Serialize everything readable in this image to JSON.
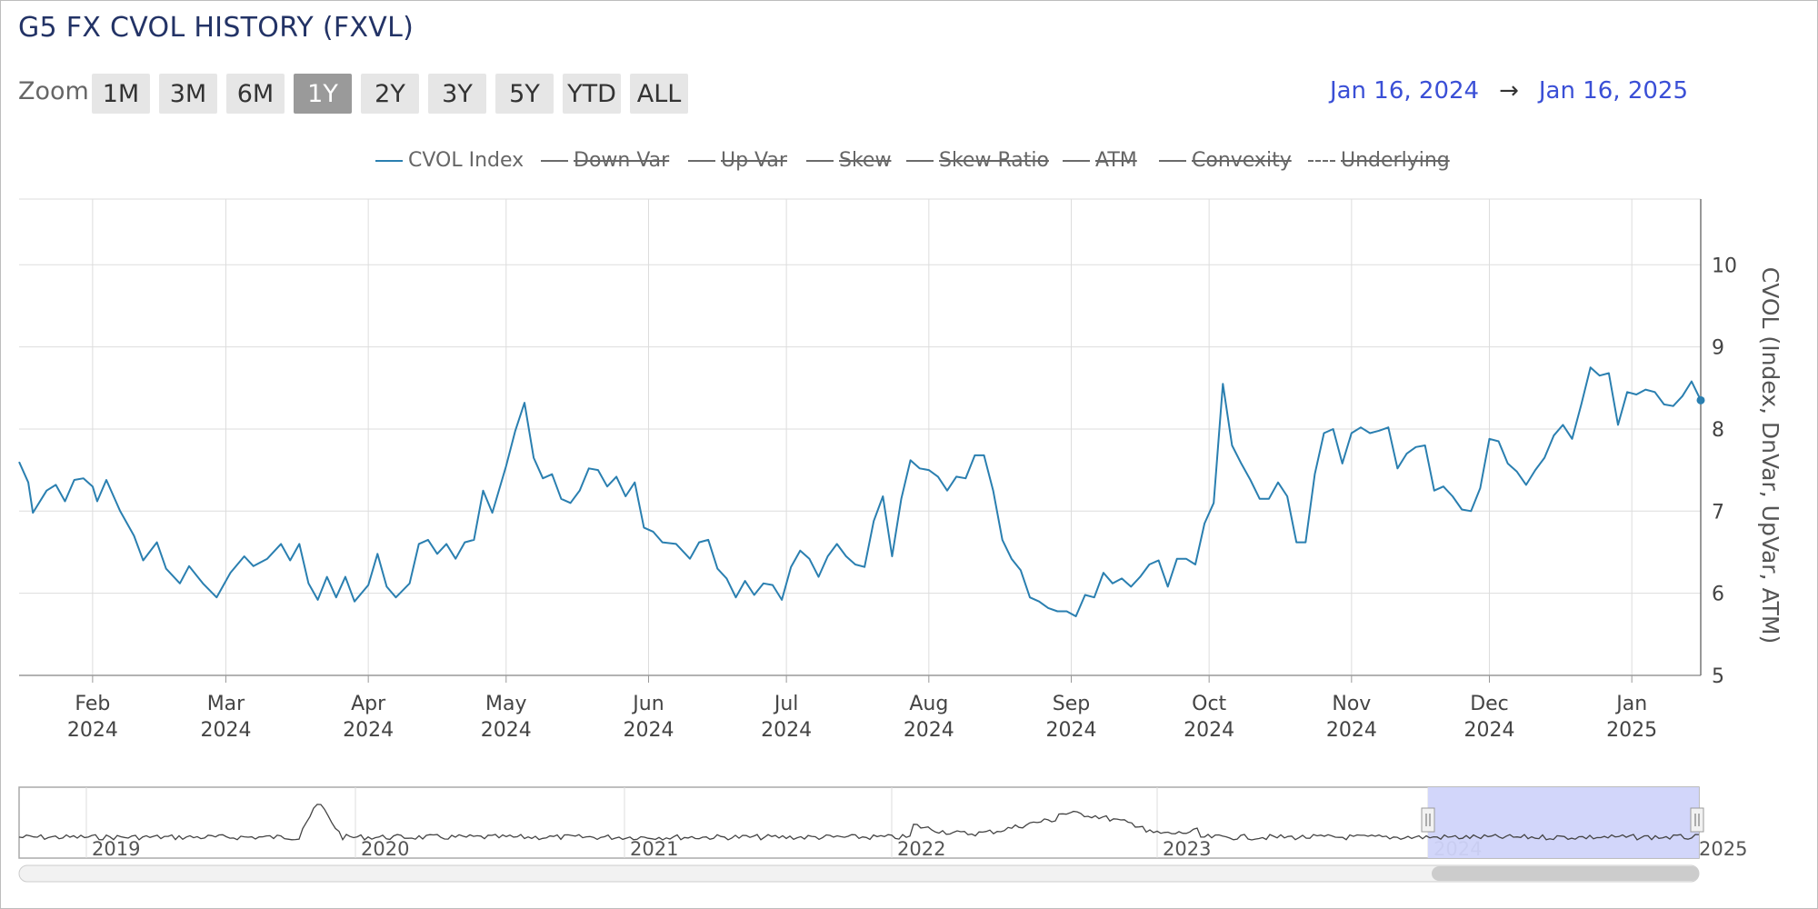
{
  "title": "G5 FX CVOL HISTORY (FXVL)",
  "zoom": {
    "label": "Zoom",
    "buttons": [
      "1M",
      "3M",
      "6M",
      "1Y",
      "2Y",
      "3Y",
      "5Y",
      "YTD",
      "ALL"
    ],
    "active": "1Y"
  },
  "range": {
    "from": "Jan 16, 2024",
    "arrow": "→",
    "to": "Jan 16, 2025"
  },
  "legend": [
    {
      "label": "CVOL Index",
      "visible": true
    },
    {
      "label": "Down Var",
      "visible": false
    },
    {
      "label": "Up Var",
      "visible": false
    },
    {
      "label": "Skew",
      "visible": false
    },
    {
      "label": "Skew Ratio",
      "visible": false
    },
    {
      "label": "ATM",
      "visible": false
    },
    {
      "label": "Convexity",
      "visible": false
    },
    {
      "label": "Underlying",
      "visible": false,
      "dashed": true
    }
  ],
  "colors": {
    "series": "#2a7fb0",
    "navigator_selection": "#d0d4fa",
    "grid": "#dddddd"
  },
  "chart_data": {
    "type": "line",
    "title": "G5 FX CVOL HISTORY (FXVL)",
    "ylabel": "CVOL (Index, DnVar, UpVar, ATM)",
    "ylim": [
      5,
      10.8
    ],
    "yticks": [
      5,
      6,
      7,
      8,
      9,
      10
    ],
    "xlim": [
      "2024-01-16",
      "2025-01-16"
    ],
    "x_ticks": [
      {
        "date": "2024-02-01",
        "month": "Feb",
        "year": "2024"
      },
      {
        "date": "2024-03-01",
        "month": "Mar",
        "year": "2024"
      },
      {
        "date": "2024-04-01",
        "month": "Apr",
        "year": "2024"
      },
      {
        "date": "2024-05-01",
        "month": "May",
        "year": "2024"
      },
      {
        "date": "2024-06-01",
        "month": "Jun",
        "year": "2024"
      },
      {
        "date": "2024-07-01",
        "month": "Jul",
        "year": "2024"
      },
      {
        "date": "2024-08-01",
        "month": "Aug",
        "year": "2024"
      },
      {
        "date": "2024-09-01",
        "month": "Sep",
        "year": "2024"
      },
      {
        "date": "2024-10-01",
        "month": "Oct",
        "year": "2024"
      },
      {
        "date": "2024-11-01",
        "month": "Nov",
        "year": "2024"
      },
      {
        "date": "2024-12-01",
        "month": "Dec",
        "year": "2024"
      },
      {
        "date": "2025-01-01",
        "month": "Jan",
        "year": "2025"
      }
    ],
    "grid": true,
    "legend_position": "top-center",
    "series": [
      {
        "name": "CVOL Index",
        "points": [
          [
            "2024-01-16",
            7.6
          ],
          [
            "2024-01-18",
            7.35
          ],
          [
            "2024-01-19",
            6.98
          ],
          [
            "2024-01-22",
            7.25
          ],
          [
            "2024-01-24",
            7.32
          ],
          [
            "2024-01-26",
            7.12
          ],
          [
            "2024-01-28",
            7.38
          ],
          [
            "2024-01-30",
            7.4
          ],
          [
            "2024-02-01",
            7.3
          ],
          [
            "2024-02-02",
            7.12
          ],
          [
            "2024-02-04",
            7.38
          ],
          [
            "2024-02-07",
            7.0
          ],
          [
            "2024-02-10",
            6.7
          ],
          [
            "2024-02-12",
            6.4
          ],
          [
            "2024-02-15",
            6.62
          ],
          [
            "2024-02-17",
            6.3
          ],
          [
            "2024-02-20",
            6.12
          ],
          [
            "2024-02-22",
            6.33
          ],
          [
            "2024-02-25",
            6.12
          ],
          [
            "2024-02-28",
            5.95
          ],
          [
            "2024-03-02",
            6.25
          ],
          [
            "2024-03-05",
            6.45
          ],
          [
            "2024-03-07",
            6.33
          ],
          [
            "2024-03-10",
            6.42
          ],
          [
            "2024-03-13",
            6.6
          ],
          [
            "2024-03-15",
            6.4
          ],
          [
            "2024-03-17",
            6.6
          ],
          [
            "2024-03-19",
            6.12
          ],
          [
            "2024-03-21",
            5.92
          ],
          [
            "2024-03-23",
            6.2
          ],
          [
            "2024-03-25",
            5.95
          ],
          [
            "2024-03-27",
            6.2
          ],
          [
            "2024-03-29",
            5.9
          ],
          [
            "2024-04-01",
            6.1
          ],
          [
            "2024-04-03",
            6.48
          ],
          [
            "2024-04-05",
            6.08
          ],
          [
            "2024-04-07",
            5.95
          ],
          [
            "2024-04-10",
            6.12
          ],
          [
            "2024-04-12",
            6.6
          ],
          [
            "2024-04-14",
            6.65
          ],
          [
            "2024-04-16",
            6.48
          ],
          [
            "2024-04-18",
            6.6
          ],
          [
            "2024-04-20",
            6.42
          ],
          [
            "2024-04-22",
            6.62
          ],
          [
            "2024-04-24",
            6.65
          ],
          [
            "2024-04-26",
            7.25
          ],
          [
            "2024-04-28",
            6.98
          ],
          [
            "2024-05-01",
            7.55
          ],
          [
            "2024-05-03",
            7.98
          ],
          [
            "2024-05-05",
            8.32
          ],
          [
            "2024-05-07",
            7.65
          ],
          [
            "2024-05-09",
            7.4
          ],
          [
            "2024-05-11",
            7.45
          ],
          [
            "2024-05-13",
            7.15
          ],
          [
            "2024-05-15",
            7.1
          ],
          [
            "2024-05-17",
            7.25
          ],
          [
            "2024-05-19",
            7.52
          ],
          [
            "2024-05-21",
            7.5
          ],
          [
            "2024-05-23",
            7.3
          ],
          [
            "2024-05-25",
            7.42
          ],
          [
            "2024-05-27",
            7.18
          ],
          [
            "2024-05-29",
            7.35
          ],
          [
            "2024-05-31",
            6.8
          ],
          [
            "2024-06-02",
            6.75
          ],
          [
            "2024-06-04",
            6.62
          ],
          [
            "2024-06-07",
            6.6
          ],
          [
            "2024-06-10",
            6.42
          ],
          [
            "2024-06-12",
            6.62
          ],
          [
            "2024-06-14",
            6.65
          ],
          [
            "2024-06-16",
            6.3
          ],
          [
            "2024-06-18",
            6.18
          ],
          [
            "2024-06-20",
            5.95
          ],
          [
            "2024-06-22",
            6.15
          ],
          [
            "2024-06-24",
            5.98
          ],
          [
            "2024-06-26",
            6.12
          ],
          [
            "2024-06-28",
            6.1
          ],
          [
            "2024-06-30",
            5.92
          ],
          [
            "2024-07-02",
            6.32
          ],
          [
            "2024-07-04",
            6.52
          ],
          [
            "2024-07-06",
            6.42
          ],
          [
            "2024-07-08",
            6.2
          ],
          [
            "2024-07-10",
            6.45
          ],
          [
            "2024-07-12",
            6.6
          ],
          [
            "2024-07-14",
            6.45
          ],
          [
            "2024-07-16",
            6.35
          ],
          [
            "2024-07-18",
            6.32
          ],
          [
            "2024-07-20",
            6.88
          ],
          [
            "2024-07-22",
            7.18
          ],
          [
            "2024-07-24",
            6.45
          ],
          [
            "2024-07-26",
            7.15
          ],
          [
            "2024-07-28",
            7.62
          ],
          [
            "2024-07-30",
            7.52
          ],
          [
            "2024-08-01",
            7.5
          ],
          [
            "2024-08-03",
            7.42
          ],
          [
            "2024-08-05",
            7.25
          ],
          [
            "2024-08-07",
            7.42
          ],
          [
            "2024-08-09",
            7.4
          ],
          [
            "2024-08-11",
            7.68
          ],
          [
            "2024-08-13",
            7.68
          ],
          [
            "2024-08-15",
            7.25
          ],
          [
            "2024-08-17",
            6.65
          ],
          [
            "2024-08-19",
            6.42
          ],
          [
            "2024-08-21",
            6.28
          ],
          [
            "2024-08-23",
            5.95
          ],
          [
            "2024-08-25",
            5.9
          ],
          [
            "2024-08-27",
            5.82
          ],
          [
            "2024-08-29",
            5.78
          ],
          [
            "2024-08-31",
            5.78
          ],
          [
            "2024-09-02",
            5.72
          ],
          [
            "2024-09-04",
            5.98
          ],
          [
            "2024-09-06",
            5.95
          ],
          [
            "2024-09-08",
            6.25
          ],
          [
            "2024-09-10",
            6.12
          ],
          [
            "2024-09-12",
            6.18
          ],
          [
            "2024-09-14",
            6.08
          ],
          [
            "2024-09-16",
            6.2
          ],
          [
            "2024-09-18",
            6.35
          ],
          [
            "2024-09-20",
            6.4
          ],
          [
            "2024-09-22",
            6.08
          ],
          [
            "2024-09-24",
            6.42
          ],
          [
            "2024-09-26",
            6.42
          ],
          [
            "2024-09-28",
            6.35
          ],
          [
            "2024-09-30",
            6.85
          ],
          [
            "2024-10-02",
            7.1
          ],
          [
            "2024-10-04",
            8.55
          ],
          [
            "2024-10-06",
            7.8
          ],
          [
            "2024-10-08",
            7.58
          ],
          [
            "2024-10-10",
            7.38
          ],
          [
            "2024-10-12",
            7.15
          ],
          [
            "2024-10-14",
            7.15
          ],
          [
            "2024-10-16",
            7.35
          ],
          [
            "2024-10-18",
            7.18
          ],
          [
            "2024-10-20",
            6.62
          ],
          [
            "2024-10-22",
            6.62
          ],
          [
            "2024-10-24",
            7.45
          ],
          [
            "2024-10-26",
            7.95
          ],
          [
            "2024-10-28",
            8.0
          ],
          [
            "2024-10-30",
            7.58
          ],
          [
            "2024-11-01",
            7.95
          ],
          [
            "2024-11-03",
            8.02
          ],
          [
            "2024-11-05",
            7.95
          ],
          [
            "2024-11-07",
            7.98
          ],
          [
            "2024-11-09",
            8.02
          ],
          [
            "2024-11-11",
            7.52
          ],
          [
            "2024-11-13",
            7.7
          ],
          [
            "2024-11-15",
            7.78
          ],
          [
            "2024-11-17",
            7.8
          ],
          [
            "2024-11-19",
            7.25
          ],
          [
            "2024-11-21",
            7.3
          ],
          [
            "2024-11-23",
            7.18
          ],
          [
            "2024-11-25",
            7.02
          ],
          [
            "2024-11-27",
            7.0
          ],
          [
            "2024-11-29",
            7.28
          ],
          [
            "2024-12-01",
            7.88
          ],
          [
            "2024-12-03",
            7.85
          ],
          [
            "2024-12-05",
            7.58
          ],
          [
            "2024-12-07",
            7.48
          ],
          [
            "2024-12-09",
            7.32
          ],
          [
            "2024-12-11",
            7.5
          ],
          [
            "2024-12-13",
            7.65
          ],
          [
            "2024-12-15",
            7.92
          ],
          [
            "2024-12-17",
            8.05
          ],
          [
            "2024-12-19",
            7.88
          ],
          [
            "2024-12-21",
            8.3
          ],
          [
            "2024-12-23",
            8.75
          ],
          [
            "2024-12-25",
            8.65
          ],
          [
            "2024-12-27",
            8.68
          ],
          [
            "2024-12-29",
            8.05
          ],
          [
            "2024-12-31",
            8.45
          ],
          [
            "2025-01-02",
            8.42
          ],
          [
            "2025-01-04",
            8.48
          ],
          [
            "2025-01-06",
            8.45
          ],
          [
            "2025-01-08",
            8.3
          ],
          [
            "2025-01-10",
            8.28
          ],
          [
            "2025-01-12",
            8.4
          ],
          [
            "2025-01-14",
            8.58
          ],
          [
            "2025-01-16",
            8.35
          ]
        ]
      }
    ]
  },
  "navigator": {
    "years": [
      "2019",
      "2020",
      "2021",
      "2022",
      "2023",
      "2024",
      "2025"
    ]
  }
}
